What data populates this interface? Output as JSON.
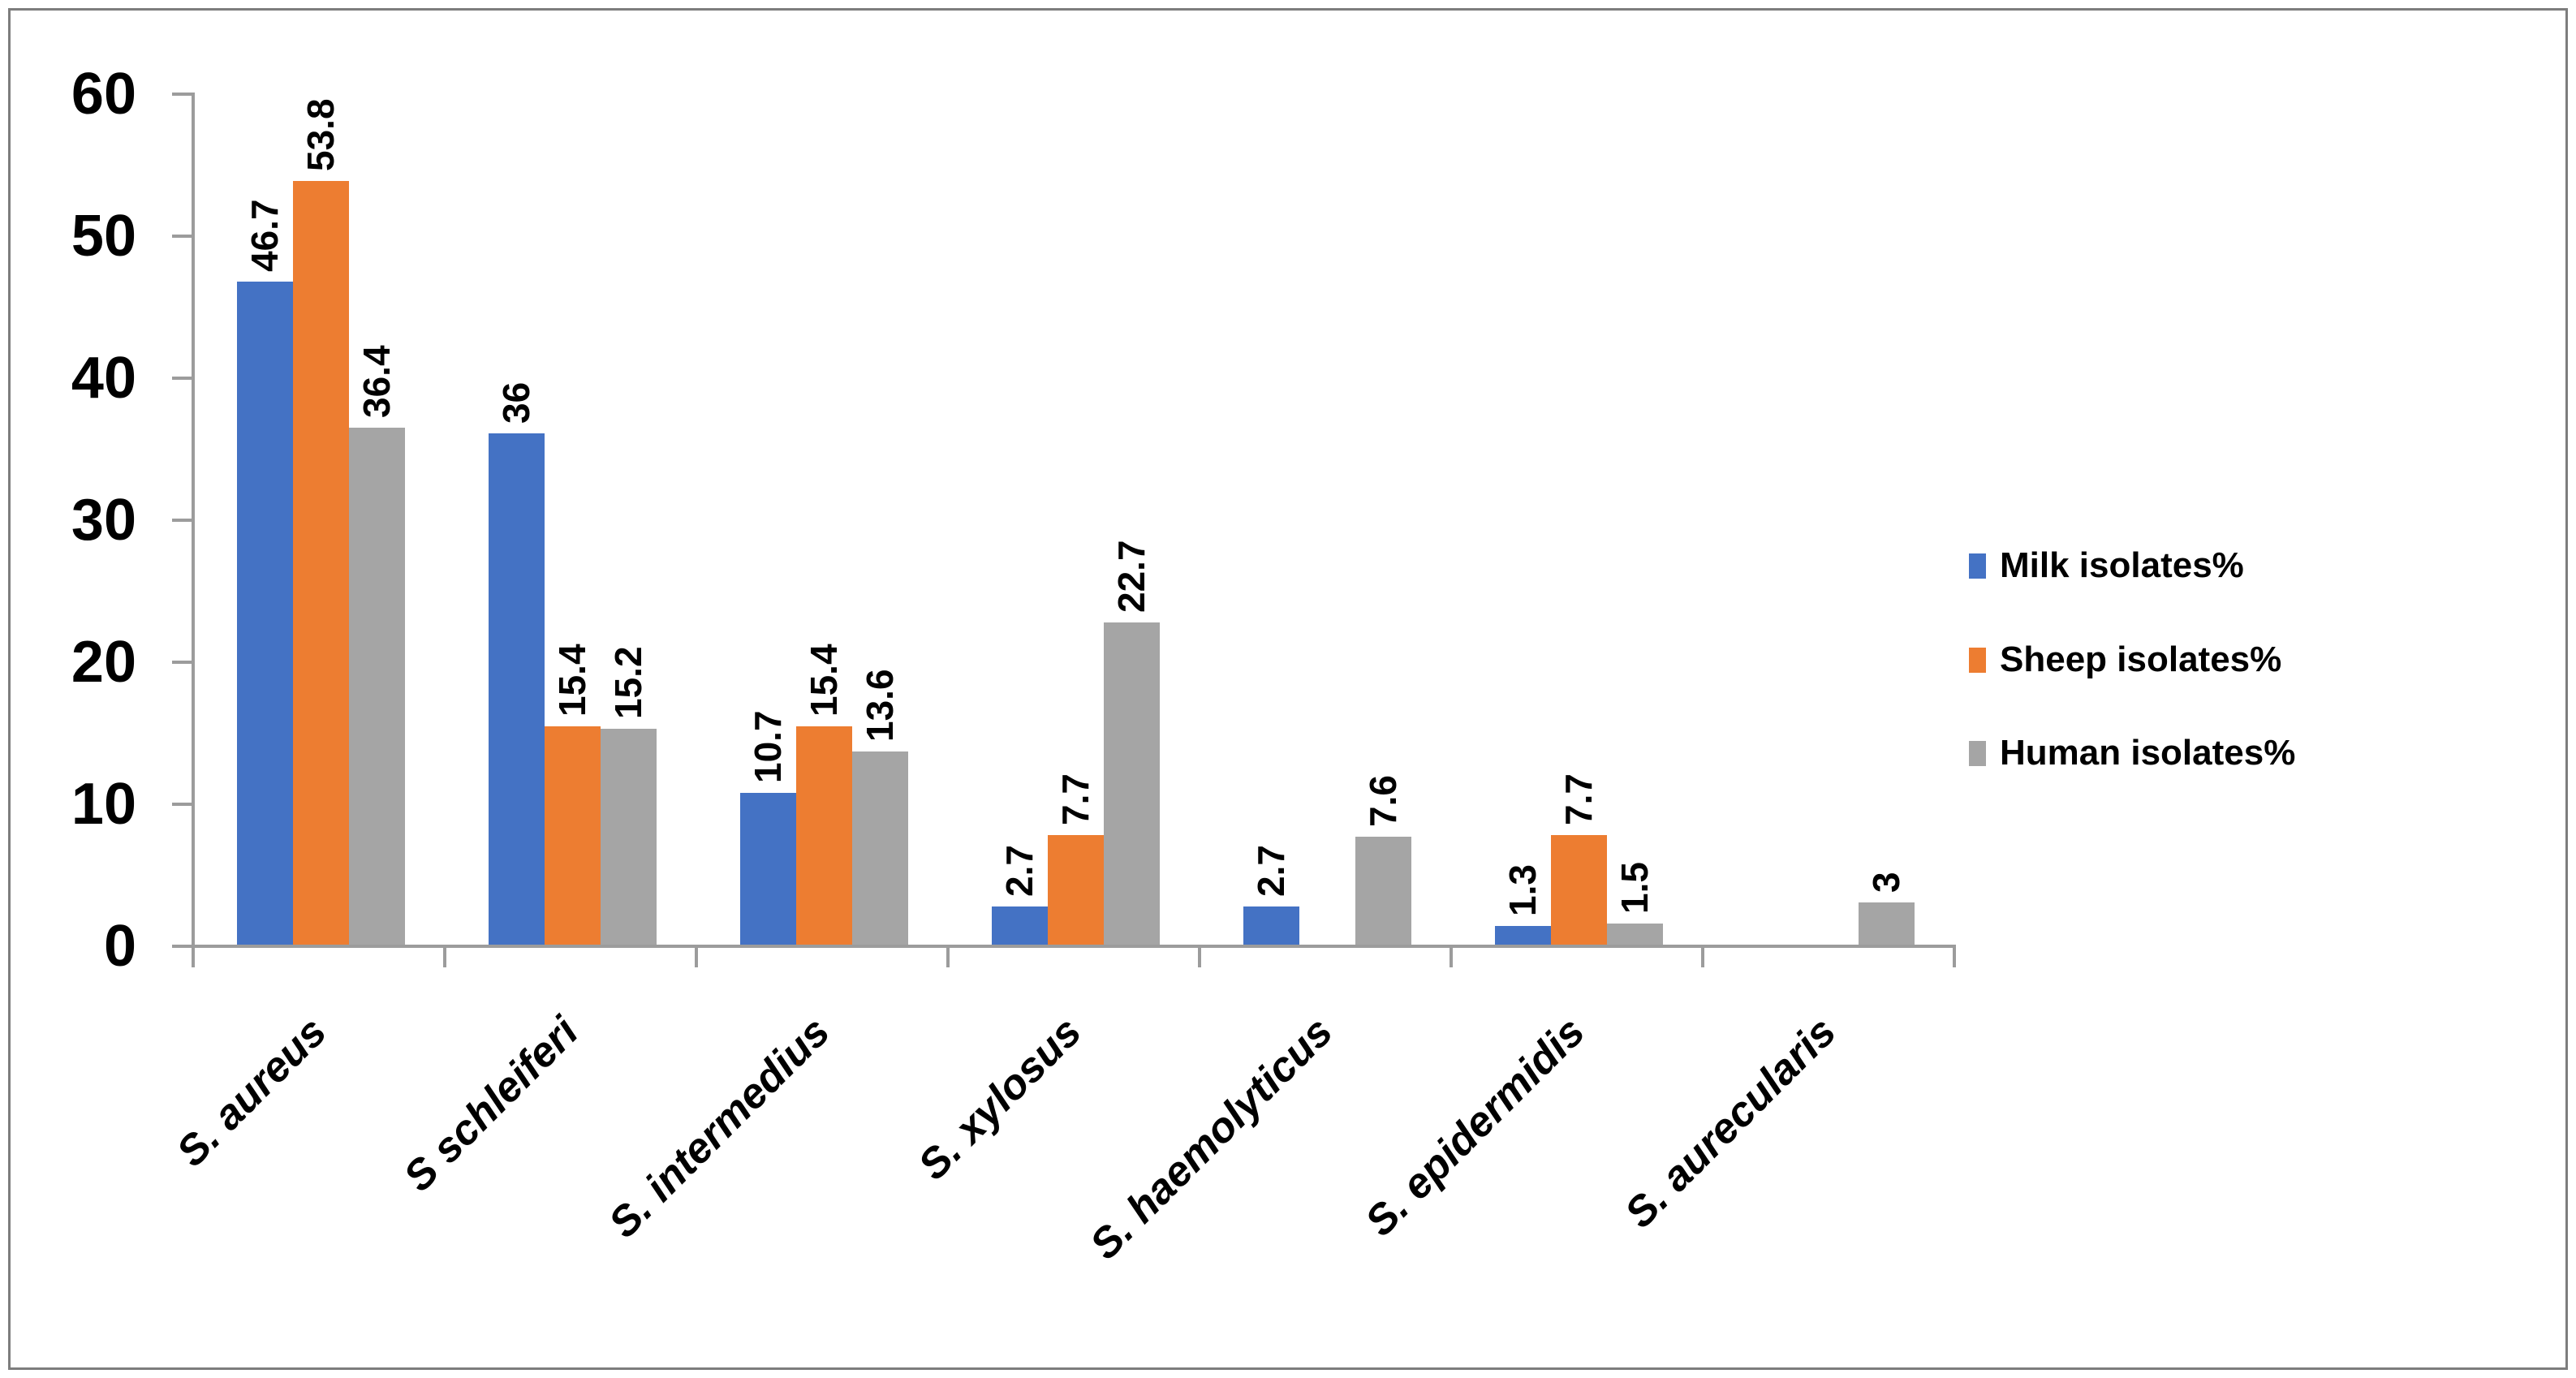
{
  "chart_data": {
    "type": "bar",
    "title": "",
    "categories": [
      "S. aureus",
      "S schleiferi",
      "S. intermedius",
      "S. xylosus",
      "S. haemolyticus",
      "S. epidermidis",
      "S. aurecularis"
    ],
    "series": [
      {
        "name": "Milk isolates%",
        "color": "#4472C4",
        "values": [
          46.7,
          36,
          10.7,
          2.7,
          2.7,
          1.3,
          null
        ]
      },
      {
        "name": "Sheep isolates%",
        "color": "#ED7D31",
        "values": [
          53.8,
          15.4,
          15.4,
          7.7,
          null,
          7.7,
          null
        ]
      },
      {
        "name": "Human isolates%",
        "color": "#A5A5A5",
        "values": [
          36.4,
          15.2,
          13.6,
          22.7,
          7.6,
          1.5,
          3
        ]
      }
    ],
    "xlabel": "",
    "ylabel": "",
    "ylim": [
      0,
      60
    ],
    "yticks": [
      0,
      10,
      20,
      30,
      40,
      50,
      60
    ],
    "grid": false,
    "legend_position": "right",
    "value_labels_rotation_deg": 90,
    "category_labels_rotation_deg": 45,
    "axis_color": "#9C9C9C",
    "frame_border_color": "#7D7D7D",
    "text_color": "#000000"
  }
}
